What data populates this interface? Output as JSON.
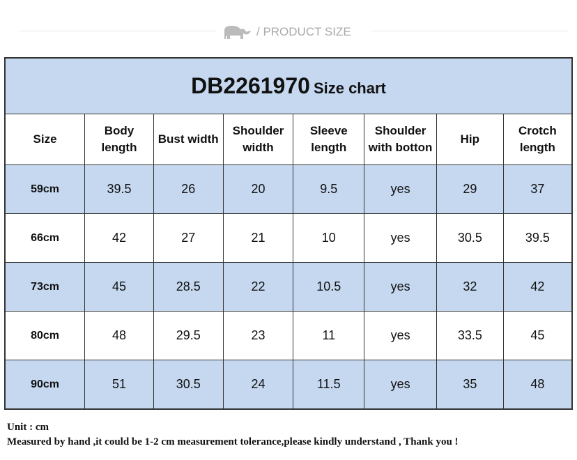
{
  "section_header": {
    "label": "/ PRODUCT SIZE",
    "icon": "elephant-logo-icon"
  },
  "table": {
    "title_code": "DB2261970",
    "title_suffix": "Size chart",
    "columns": [
      "Size",
      "Body length",
      "Bust width",
      "Shoulder width",
      "Sleeve length",
      "Shoulder with botton",
      "Hip",
      "Crotch length"
    ],
    "rows": [
      [
        "59cm",
        "39.5",
        "26",
        "20",
        "9.5",
        "yes",
        "29",
        "37"
      ],
      [
        "66cm",
        "42",
        "27",
        "21",
        "10",
        "yes",
        "30.5",
        "39.5"
      ],
      [
        "73cm",
        "45",
        "28.5",
        "22",
        "10.5",
        "yes",
        "32",
        "42"
      ],
      [
        "80cm",
        "48",
        "29.5",
        "23",
        "11",
        "yes",
        "33.5",
        "45"
      ],
      [
        "90cm",
        "51",
        "30.5",
        "24",
        "11.5",
        "yes",
        "35",
        "48"
      ]
    ],
    "colors": {
      "band": "#c5d8f0",
      "border": "#333333"
    }
  },
  "notes": {
    "unit": "Unit : cm",
    "tolerance": "Measured by hand ,it could be 1-2 cm measurement tolerance,please kindly understand , Thank you !"
  }
}
